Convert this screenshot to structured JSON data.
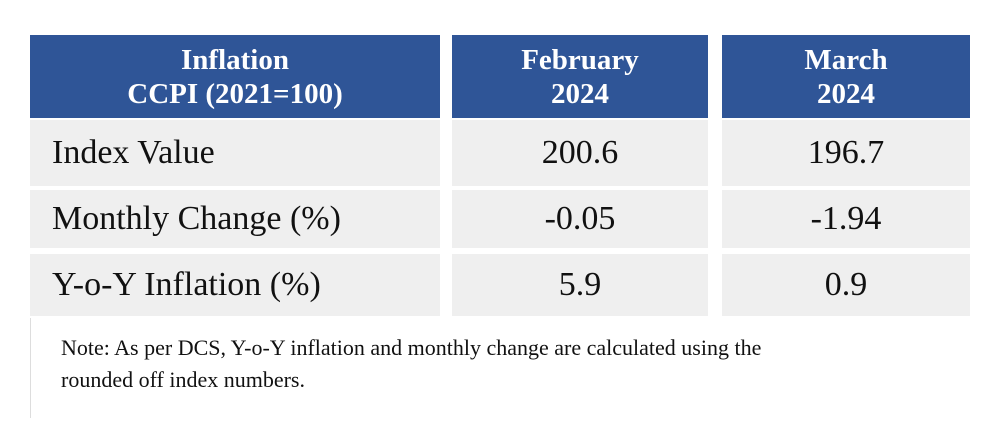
{
  "table": {
    "header": [
      [
        "Inflation",
        "CCPI (2021=100)"
      ],
      [
        "February",
        "2024"
      ],
      [
        "March",
        "2024"
      ]
    ],
    "rows": [
      [
        "Index Value",
        "200.6",
        "196.7"
      ],
      [
        "Monthly Change (%)",
        "-0.05",
        "-1.94"
      ],
      [
        "Y-o-Y Inflation (%)",
        "5.9",
        "0.9"
      ]
    ]
  },
  "note": [
    "Note: As per DCS, Y-o-Y inflation and monthly change are calculated using the",
    "rounded off index numbers."
  ]
}
